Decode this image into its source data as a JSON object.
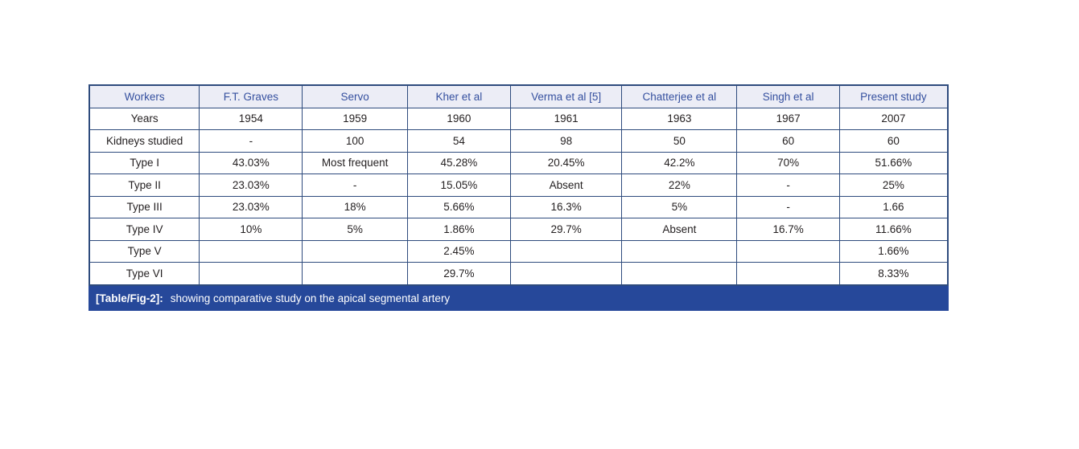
{
  "colors": {
    "header_bg": "#ECEDF6",
    "header_text": "#35509F",
    "border": "#2E4B7D",
    "body_text": "#231F20",
    "caption_bg": "#26489A",
    "caption_text": "#FFFFFF",
    "page_bg": "#FFFFFF"
  },
  "table": {
    "columns": [
      "Workers",
      "F.T. Graves",
      "Servo",
      "Kher et al",
      "Verma et al [5]",
      "Chatterjee et al",
      "Singh et al",
      "Present study"
    ],
    "rows": [
      [
        "Years",
        "1954",
        "1959",
        "1960",
        "1961",
        "1963",
        "1967",
        "2007"
      ],
      [
        "Kidneys studied",
        "-",
        "100",
        "54",
        "98",
        "50",
        "60",
        "60"
      ],
      [
        "Type I",
        "43.03%",
        "Most frequent",
        "45.28%",
        "20.45%",
        "42.2%",
        "70%",
        "51.66%"
      ],
      [
        "Type II",
        "23.03%",
        "-",
        "15.05%",
        "Absent",
        "22%",
        "-",
        "25%"
      ],
      [
        "Type III",
        "23.03%",
        "18%",
        "5.66%",
        "16.3%",
        "5%",
        "-",
        "1.66"
      ],
      [
        "Type IV",
        "10%",
        "5%",
        "1.86%",
        "29.7%",
        "Absent",
        "16.7%",
        "11.66%"
      ],
      [
        "Type V",
        "",
        "",
        "2.45%",
        "",
        "",
        "",
        "1.66%"
      ],
      [
        "Type VI",
        "",
        "",
        "29.7%",
        "",
        "",
        "",
        "8.33%"
      ]
    ]
  },
  "caption": {
    "label": "[Table/Fig-2]:",
    "text": "showing comparative study on the apical segmental artery"
  }
}
